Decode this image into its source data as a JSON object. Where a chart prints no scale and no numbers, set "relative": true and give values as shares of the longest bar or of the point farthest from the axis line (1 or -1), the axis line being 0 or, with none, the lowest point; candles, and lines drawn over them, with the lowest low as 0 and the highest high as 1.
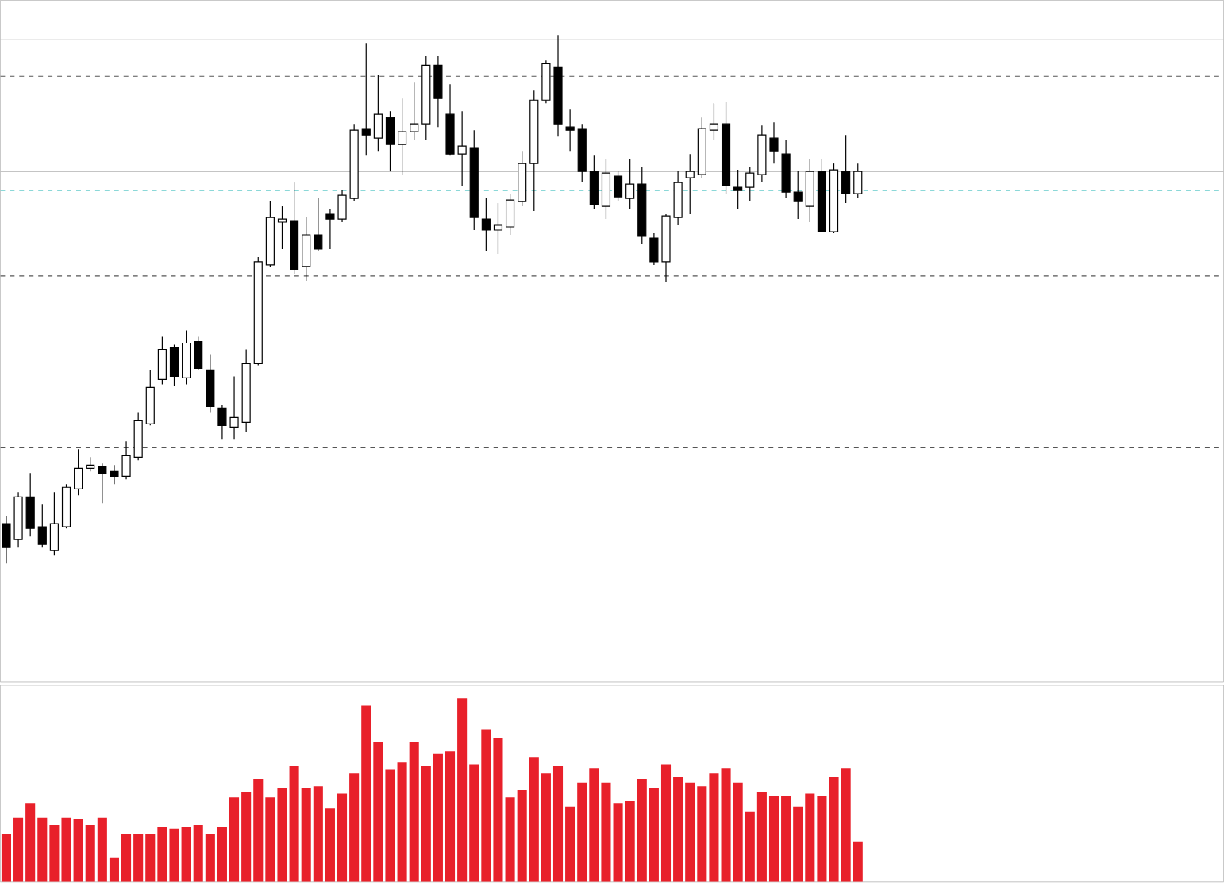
{
  "chart_data": [
    {
      "type": "candlestick",
      "relative": true,
      "categories": [
        null,
        null,
        null,
        null,
        null,
        null,
        null,
        null,
        null,
        null,
        null,
        null,
        null,
        null,
        null,
        null,
        null,
        null,
        null,
        null,
        null,
        null,
        null,
        null,
        null,
        null,
        null,
        null,
        null,
        null,
        null,
        null,
        null,
        null,
        null,
        null,
        null,
        null,
        null,
        null,
        null,
        null,
        null,
        null,
        null,
        null,
        null,
        null,
        null,
        null,
        null,
        null,
        null,
        null,
        null,
        null,
        null,
        null,
        null,
        null,
        null,
        null,
        null,
        null,
        null,
        null,
        null,
        null,
        null,
        null,
        null,
        null
      ],
      "ohlc": [
        [
          0.075,
          0.09,
          0,
          0.03
        ],
        [
          0.045,
          0.135,
          0.03,
          0.126
        ],
        [
          0.126,
          0.171,
          0.051,
          0.066
        ],
        [
          0.069,
          0.111,
          0.03,
          0.036
        ],
        [
          0.024,
          0.135,
          0.015,
          0.075
        ],
        [
          0.069,
          0.15,
          0.066,
          0.144
        ],
        [
          0.141,
          0.216,
          0.129,
          0.18
        ],
        [
          0.18,
          0.201,
          0.174,
          0.186
        ],
        [
          0.183,
          0.189,
          0.114,
          0.171
        ],
        [
          0.174,
          0.186,
          0.15,
          0.165
        ],
        [
          0.165,
          0.231,
          0.159,
          0.204
        ],
        [
          0.201,
          0.285,
          0.195,
          0.27
        ],
        [
          0.264,
          0.366,
          0.261,
          0.333
        ],
        [
          0.348,
          0.429,
          0.339,
          0.405
        ],
        [
          0.408,
          0.414,
          0.336,
          0.354
        ],
        [
          0.351,
          0.441,
          0.339,
          0.417
        ],
        [
          0.42,
          0.429,
          0.366,
          0.369
        ],
        [
          0.366,
          0.396,
          0.285,
          0.297
        ],
        [
          0.294,
          0.3,
          0.234,
          0.261
        ],
        [
          0.258,
          0.354,
          0.234,
          0.276
        ],
        [
          0.267,
          0.405,
          0.249,
          0.378
        ],
        [
          0.378,
          0.58,
          0.375,
          0.571
        ],
        [
          0.565,
          0.685,
          0.562,
          0.655
        ],
        [
          0.646,
          0.676,
          0.595,
          0.652
        ],
        [
          0.649,
          0.721,
          0.547,
          0.556
        ],
        [
          0.562,
          0.655,
          0.535,
          0.622
        ],
        [
          0.622,
          0.691,
          0.592,
          0.595
        ],
        [
          0.661,
          0.67,
          0.595,
          0.652
        ],
        [
          0.652,
          0.706,
          0.646,
          0.697
        ],
        [
          0.691,
          0.832,
          0.685,
          0.82
        ],
        [
          0.823,
          0.985,
          0.772,
          0.811
        ],
        [
          0.805,
          0.925,
          0.781,
          0.85
        ],
        [
          0.844,
          0.856,
          0.742,
          0.793
        ],
        [
          0.793,
          0.88,
          0.736,
          0.817
        ],
        [
          0.817,
          0.91,
          0.802,
          0.832
        ],
        [
          0.832,
          0.961,
          0.802,
          0.943
        ],
        [
          0.943,
          0.961,
          0.826,
          0.88
        ],
        [
          0.85,
          0.907,
          0.772,
          0.775
        ],
        [
          0.775,
          0.856,
          0.715,
          0.79
        ],
        [
          0.787,
          0.82,
          0.631,
          0.655
        ],
        [
          0.652,
          0.691,
          0.592,
          0.631
        ],
        [
          0.631,
          0.682,
          0.586,
          0.64
        ],
        [
          0.637,
          0.7,
          0.622,
          0.688
        ],
        [
          0.685,
          0.781,
          0.676,
          0.757
        ],
        [
          0.757,
          0.895,
          0.667,
          0.877
        ],
        [
          0.877,
          0.952,
          0.871,
          0.946
        ],
        [
          0.94,
          1,
          0.808,
          0.832
        ],
        [
          0.826,
          0.859,
          0.781,
          0.82
        ],
        [
          0.823,
          0.832,
          0.721,
          0.742
        ],
        [
          0.742,
          0.772,
          0.67,
          0.679
        ],
        [
          0.676,
          0.766,
          0.652,
          0.739
        ],
        [
          0.733,
          0.742,
          0.685,
          0.694
        ],
        [
          0.691,
          0.766,
          0.67,
          0.718
        ],
        [
          0.718,
          0.751,
          0.604,
          0.619
        ],
        [
          0.616,
          0.625,
          0.565,
          0.571
        ],
        [
          0.571,
          0.661,
          0.532,
          0.658
        ],
        [
          0.655,
          0.742,
          0.64,
          0.721
        ],
        [
          0.73,
          0.775,
          0.661,
          0.742
        ],
        [
          0.736,
          0.844,
          0.73,
          0.823
        ],
        [
          0.82,
          0.871,
          0.802,
          0.832
        ],
        [
          0.832,
          0.874,
          0.7,
          0.715
        ],
        [
          0.712,
          0.745,
          0.67,
          0.706
        ],
        [
          0.712,
          0.751,
          0.685,
          0.739
        ],
        [
          0.736,
          0.829,
          0.721,
          0.811
        ],
        [
          0.805,
          0.835,
          0.757,
          0.781
        ],
        [
          0.775,
          0.802,
          0.691,
          0.703
        ],
        [
          0.703,
          0.742,
          0.652,
          0.685
        ],
        [
          0.676,
          0.766,
          0.646,
          0.742
        ],
        [
          0.742,
          0.766,
          0.628,
          0.628
        ],
        [
          0.628,
          0.757,
          0.625,
          0.745
        ],
        [
          0.742,
          0.811,
          0.682,
          0.7
        ],
        [
          0.7,
          0.757,
          0.691,
          0.742
        ]
      ],
      "ref_lines": [
        {
          "axis": "y",
          "value": 0.991,
          "color": "#b0b0b0",
          "line_style": "solid"
        },
        {
          "axis": "y",
          "value": 0.922,
          "color": "#555555",
          "line_style": "dashed"
        },
        {
          "axis": "y",
          "value": 0.742,
          "color": "#b0b0b0",
          "line_style": "solid"
        },
        {
          "axis": "y",
          "value": 0.706,
          "color": "#66cccc",
          "line_style": "dashed"
        },
        {
          "axis": "y",
          "value": 0.544,
          "color": "#555555",
          "line_style": "dashed"
        },
        {
          "axis": "y",
          "value": 0.219,
          "color": "#555555",
          "line_style": "dashed"
        }
      ]
    },
    {
      "type": "bar",
      "relative": true,
      "color": "#e8202a",
      "categories": [
        null,
        null,
        null,
        null,
        null,
        null,
        null,
        null,
        null,
        null,
        null,
        null,
        null,
        null,
        null,
        null,
        null,
        null,
        null,
        null,
        null,
        null,
        null,
        null,
        null,
        null,
        null,
        null,
        null,
        null,
        null,
        null,
        null,
        null,
        null,
        null,
        null,
        null,
        null,
        null,
        null,
        null,
        null,
        null,
        null,
        null,
        null,
        null,
        null,
        null,
        null,
        null,
        null,
        null,
        null,
        null,
        null,
        null,
        null,
        null,
        null,
        null,
        null,
        null,
        null,
        null,
        null,
        null,
        null,
        null,
        null,
        null
      ],
      "values": [
        0.26,
        0.35,
        0.43,
        0.35,
        0.31,
        0.35,
        0.34,
        0.31,
        0.35,
        0.13,
        0.26,
        0.26,
        0.26,
        0.3,
        0.29,
        0.3,
        0.31,
        0.26,
        0.3,
        0.46,
        0.49,
        0.56,
        0.46,
        0.51,
        0.63,
        0.51,
        0.52,
        0.4,
        0.48,
        0.59,
        0.96,
        0.76,
        0.61,
        0.65,
        0.76,
        0.63,
        0.7,
        0.71,
        1,
        0.64,
        0.83,
        0.78,
        0.46,
        0.5,
        0.68,
        0.59,
        0.63,
        0.41,
        0.54,
        0.62,
        0.54,
        0.43,
        0.44,
        0.56,
        0.51,
        0.64,
        0.57,
        0.54,
        0.52,
        0.59,
        0.62,
        0.54,
        0.38,
        0.49,
        0.47,
        0.47,
        0.41,
        0.48,
        0.47,
        0.57,
        0.62,
        0.22
      ]
    }
  ]
}
